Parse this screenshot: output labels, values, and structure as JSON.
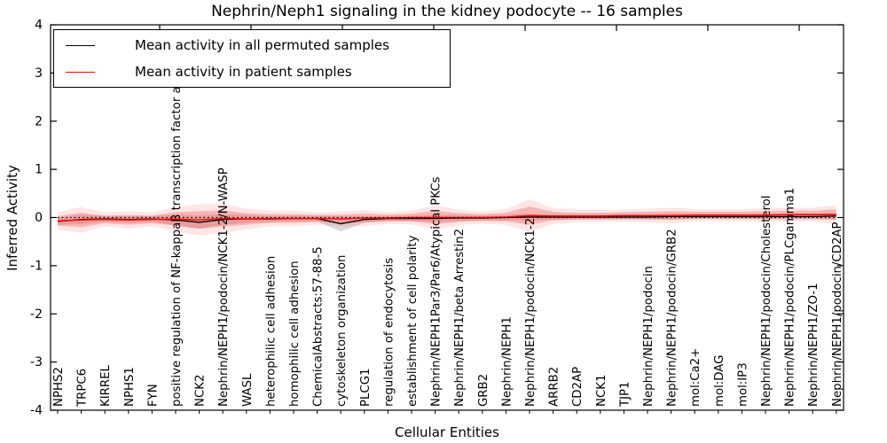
{
  "title": "Nephrin/Neph1 signaling in the kidney podocyte -- 16 samples",
  "axes": {
    "xlabel": "Cellular Entities",
    "ylabel": "Inferred Activity",
    "yticks": [
      "4",
      "3",
      "2",
      "1",
      "0",
      "-1",
      "-2",
      "-3",
      "-4"
    ],
    "ylim": [
      -4,
      4
    ]
  },
  "legend": {
    "items": [
      {
        "label": "Mean activity in all permuted samples",
        "color": "#000000"
      },
      {
        "label": "Mean activity in patient samples",
        "color": "#ff0000"
      }
    ]
  },
  "chart_data": {
    "type": "line",
    "title": "Nephrin/Neph1 signaling in the kidney podocyte -- 16 samples",
    "xlabel": "Cellular Entities",
    "ylabel": "Inferred Activity",
    "ylim": [
      -4,
      4
    ],
    "grid": false,
    "legend_position": "upper left",
    "zero_line": {
      "y": 0,
      "style": "dotted",
      "color": "#000000"
    },
    "categories": [
      "NPHS2",
      "TRPC6",
      "KIRREL",
      "NPHS1",
      "FYN",
      "positive regulation of NF-kappaB transcription factor a",
      "NCK2",
      "Nephrin/NEPH1/podocin/NCK1-2/N-WASP",
      "WASL",
      "heterophilic cell adhesion",
      "homophilic cell adhesion",
      "ChemicalAbstracts:57-88-5",
      "cytoskeleton organization",
      "PLCG1",
      "regulation of endocytosis",
      "establishment of cell polarity",
      "Nephrin/NEPH1Par3/Par6/Atypical PKCs",
      "Nephrin/NEPH1/beta Arrestin2",
      "GRB2",
      "Nephrin/NEPH1",
      "Nephrin/NEPH1/podocin/NCK1-2",
      "ARRB2",
      "CD2AP",
      "NCK1",
      "TJP1",
      "Nephrin/NEPH1/podocin",
      "Nephrin/NEPH1/podocin/GRB2",
      "mol:Ca2+",
      "mol:DAG",
      "mol:IP3",
      "Nephrin/NEPH1/podocin/Cholesterol",
      "Nephrin/NEPH1/podocin/PLCgamma1",
      "Nephrin/NEPH1/ZO-1",
      "Nephrin/NEPH1/podocin/CD2AP"
    ],
    "series": [
      {
        "name": "Mean activity in all permuted samples",
        "color": "#000000",
        "band_color": "#999999",
        "values": [
          -0.08,
          -0.04,
          -0.03,
          -0.04,
          -0.03,
          -0.05,
          -0.1,
          -0.04,
          -0.03,
          -0.03,
          -0.02,
          -0.02,
          -0.13,
          -0.04,
          -0.02,
          -0.02,
          -0.02,
          -0.01,
          -0.01,
          0.0,
          0.01,
          0.01,
          0.01,
          0.01,
          0.01,
          0.01,
          0.02,
          0.02,
          0.02,
          0.02,
          0.02,
          0.02,
          0.02,
          0.03
        ],
        "band_halfwidth": [
          0.07,
          0.1,
          0.06,
          0.07,
          0.06,
          0.11,
          0.14,
          0.11,
          0.08,
          0.06,
          0.06,
          0.06,
          0.16,
          0.07,
          0.05,
          0.06,
          0.07,
          0.06,
          0.05,
          0.06,
          0.07,
          0.05,
          0.05,
          0.05,
          0.05,
          0.05,
          0.06,
          0.05,
          0.05,
          0.05,
          0.06,
          0.06,
          0.06,
          0.07
        ]
      },
      {
        "name": "Mean activity in patient samples",
        "color": "#ff0000",
        "band_color": "#ff3333",
        "values": [
          -0.07,
          -0.05,
          -0.04,
          -0.05,
          -0.04,
          -0.03,
          -0.05,
          -0.02,
          -0.03,
          -0.02,
          -0.02,
          -0.02,
          -0.03,
          -0.01,
          -0.01,
          0.0,
          0.0,
          0.0,
          0.0,
          0.01,
          0.04,
          0.03,
          0.03,
          0.03,
          0.04,
          0.04,
          0.04,
          0.05,
          0.05,
          0.05,
          0.05,
          0.06,
          0.06,
          0.06
        ],
        "band_halfwidth": [
          0.1,
          0.15,
          0.08,
          0.1,
          0.08,
          0.14,
          0.18,
          0.17,
          0.12,
          0.09,
          0.09,
          0.07,
          0.09,
          0.09,
          0.07,
          0.08,
          0.14,
          0.09,
          0.07,
          0.09,
          0.19,
          0.09,
          0.07,
          0.07,
          0.07,
          0.08,
          0.09,
          0.07,
          0.07,
          0.07,
          0.08,
          0.08,
          0.08,
          0.11
        ]
      }
    ]
  }
}
